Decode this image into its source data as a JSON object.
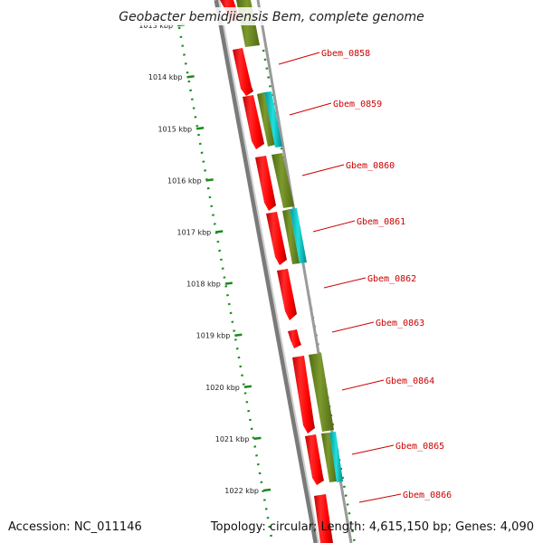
{
  "title": "Geobacter bemidjiensis Bem, complete genome",
  "accession": "Accession: NC_011146",
  "summary": "Topology: circular; Length: 4,615,150 bp; Genes: 4,090",
  "ruler": [
    {
      "label": "1013 kbp",
      "kbp": 1013
    },
    {
      "label": "1014 kbp",
      "kbp": 1014
    },
    {
      "label": "1015 kbp",
      "kbp": 1015
    },
    {
      "label": "1016 kbp",
      "kbp": 1016
    },
    {
      "label": "1017 kbp",
      "kbp": 1017
    },
    {
      "label": "1018 kbp",
      "kbp": 1018
    },
    {
      "label": "1019 kbp",
      "kbp": 1019
    },
    {
      "label": "1020 kbp",
      "kbp": 1020
    },
    {
      "label": "1021 kbp",
      "kbp": 1021
    },
    {
      "label": "1022 kbp",
      "kbp": 1022
    }
  ],
  "genes": [
    {
      "label": "Gbem_0858"
    },
    {
      "label": "Gbem_0859"
    },
    {
      "label": "Gbem_0860"
    },
    {
      "label": "Gbem_0861"
    },
    {
      "label": "Gbem_0862"
    },
    {
      "label": "Gbem_0863"
    },
    {
      "label": "Gbem_0864"
    },
    {
      "label": "Gbem_0865"
    },
    {
      "label": "Gbem_0866"
    }
  ],
  "colors": {
    "gene": "#ff0000",
    "cds": "#6b8e23",
    "cyan": "#00cccc",
    "backbone": "#808080",
    "ruler": "#1a8a1a",
    "label": "#cc0000"
  }
}
